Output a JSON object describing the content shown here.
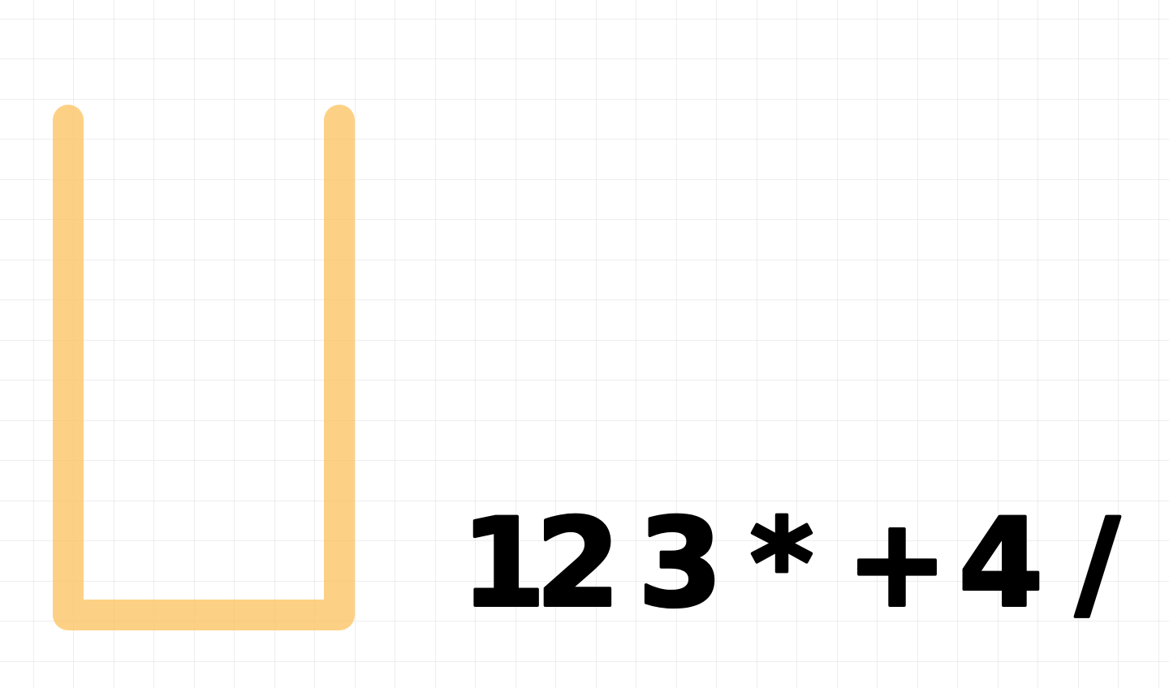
{
  "ink": {
    "characters": [
      "1",
      "2",
      "3",
      "*",
      "+",
      "4",
      "/"
    ]
  }
}
